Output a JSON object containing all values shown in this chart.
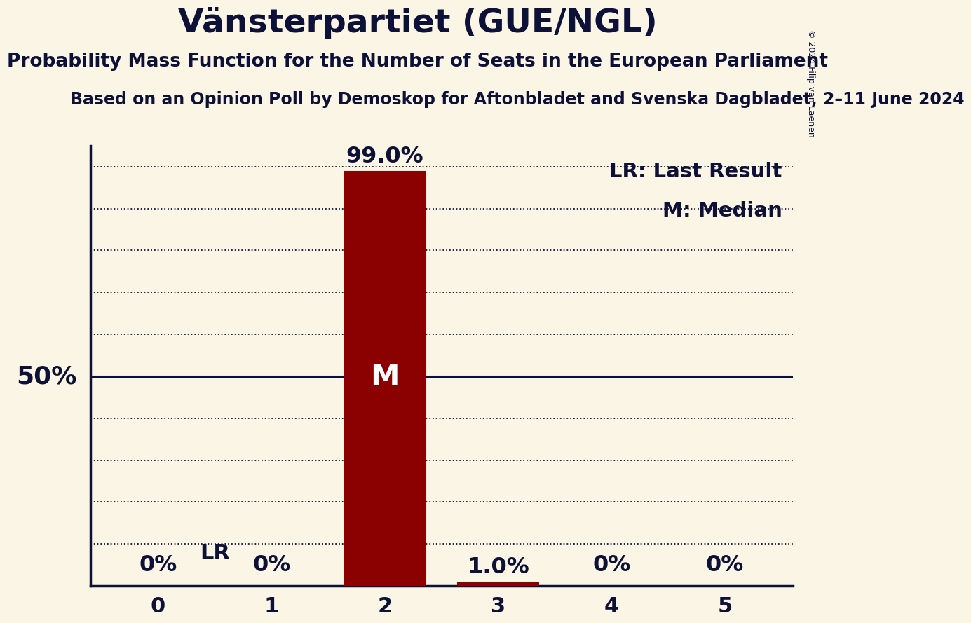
{
  "title": "Vänsterpartiet (GUE/NGL)",
  "subtitle": "Probability Mass Function for the Number of Seats in the European Parliament",
  "subsubtitle": "Based on an Opinion Poll by Demoskop for Aftonbladet and Svenska Dagbladet, 2–11 June 2024",
  "copyright": "© 2024 Filip van Laenen",
  "seats": [
    0,
    1,
    2,
    3,
    4,
    5
  ],
  "probabilities": [
    0.0,
    0.0,
    99.0,
    1.0,
    0.0,
    0.0
  ],
  "bar_color": "#8B0000",
  "background_color": "#FAF5E4",
  "median": 2,
  "last_result": 2,
  "ylabel_50": "50%",
  "legend_lr": "LR: Last Result",
  "legend_m": "M: Median",
  "ylim_max": 105,
  "title_fontsize": 34,
  "subtitle_fontsize": 19,
  "subsubtitle_fontsize": 17,
  "axis_tick_fontsize": 22,
  "bar_label_fontsize": 23,
  "median_label_fontsize": 30,
  "lr_label_fontsize": 22,
  "legend_fontsize": 21,
  "fifty_pct_fontsize": 26,
  "text_color": "#0d1137",
  "dotted_grid_levels": [
    10,
    20,
    30,
    40,
    60,
    70,
    80,
    90,
    100
  ],
  "solid_line_level": 50
}
